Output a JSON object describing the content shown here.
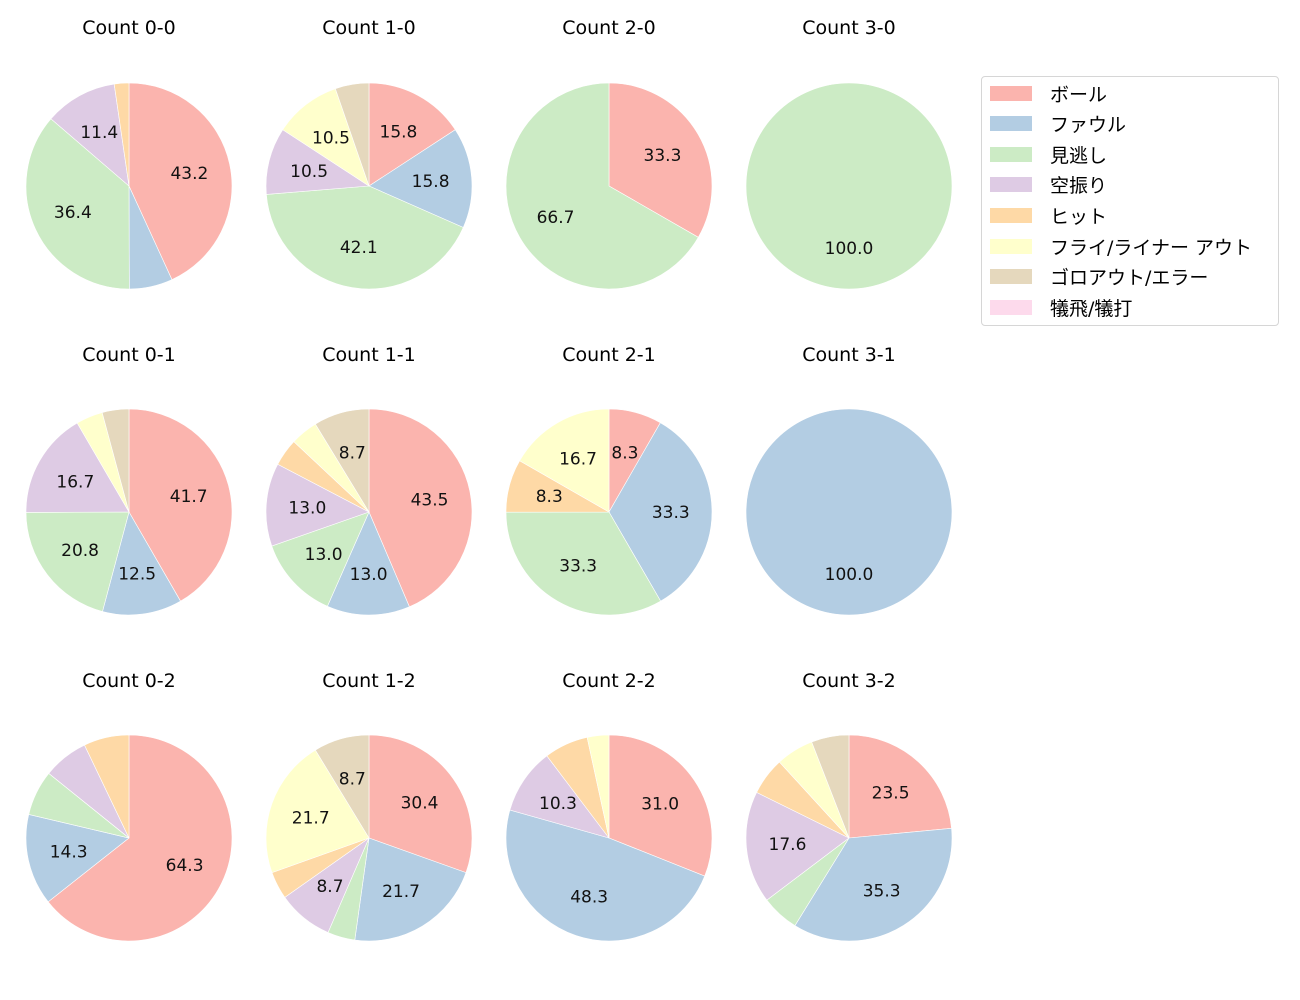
{
  "legend": {
    "items": [
      {
        "label": "ボール",
        "color": "#fbb4ae"
      },
      {
        "label": "ファウル",
        "color": "#b3cde3"
      },
      {
        "label": "見逃し",
        "color": "#ccebc5"
      },
      {
        "label": "空振り",
        "color": "#decbe4"
      },
      {
        "label": "ヒット",
        "color": "#fed9a6"
      },
      {
        "label": "フライ/ライナー アウト",
        "color": "#ffffcc"
      },
      {
        "label": "ゴロアウト/エラー",
        "color": "#e5d8bd"
      },
      {
        "label": "犠飛/犠打",
        "color": "#fddaec"
      }
    ]
  },
  "chart_data": [
    {
      "type": "pie",
      "title": "Count 0-0",
      "labels": [
        "ボール",
        "ファウル",
        "見逃し",
        "空振り",
        "ヒット"
      ],
      "values": [
        43.2,
        6.8,
        36.4,
        11.4,
        2.3
      ],
      "shown_labels": [
        "43.2",
        "",
        "36.4",
        "11.4",
        ""
      ]
    },
    {
      "type": "pie",
      "title": "Count 1-0",
      "labels": [
        "ボール",
        "ファウル",
        "見逃し",
        "空振り",
        "フライ/ライナー アウト",
        "ゴロアウト/エラー"
      ],
      "values": [
        15.8,
        15.8,
        42.1,
        10.5,
        10.5,
        5.3
      ],
      "shown_labels": [
        "15.8",
        "15.8",
        "42.1",
        "10.5",
        "10.5",
        ""
      ]
    },
    {
      "type": "pie",
      "title": "Count 2-0",
      "labels": [
        "ボール",
        "見逃し"
      ],
      "values": [
        33.3,
        66.7
      ],
      "shown_labels": [
        "33.3",
        "66.7"
      ]
    },
    {
      "type": "pie",
      "title": "Count 3-0",
      "labels": [
        "見逃し"
      ],
      "values": [
        100.0
      ],
      "shown_labels": [
        "100.0"
      ]
    },
    {
      "type": "pie",
      "title": "Count 0-1",
      "labels": [
        "ボール",
        "ファウル",
        "見逃し",
        "空振り",
        "フライ/ライナー アウト",
        "ゴロアウト/エラー"
      ],
      "values": [
        41.7,
        12.5,
        20.8,
        16.7,
        4.2,
        4.2
      ],
      "shown_labels": [
        "41.7",
        "12.5",
        "20.8",
        "16.7",
        "",
        ""
      ]
    },
    {
      "type": "pie",
      "title": "Count 1-1",
      "labels": [
        "ボール",
        "ファウル",
        "見逃し",
        "空振り",
        "ヒット",
        "フライ/ライナー アウト",
        "ゴロアウト/エラー"
      ],
      "values": [
        43.5,
        13.0,
        13.0,
        13.0,
        4.3,
        4.3,
        8.7
      ],
      "shown_labels": [
        "43.5",
        "13.0",
        "13.0",
        "13.0",
        "",
        "",
        "8.7"
      ]
    },
    {
      "type": "pie",
      "title": "Count 2-1",
      "labels": [
        "ボール",
        "ファウル",
        "見逃し",
        "ヒット",
        "フライ/ライナー アウト"
      ],
      "values": [
        8.3,
        33.3,
        33.3,
        8.3,
        16.7
      ],
      "shown_labels": [
        "8.3",
        "33.3",
        "33.3",
        "8.3",
        "16.7"
      ]
    },
    {
      "type": "pie",
      "title": "Count 3-1",
      "labels": [
        "ファウル"
      ],
      "values": [
        100.0
      ],
      "shown_labels": [
        "100.0"
      ]
    },
    {
      "type": "pie",
      "title": "Count 0-2",
      "labels": [
        "ボール",
        "ファウル",
        "見逃し",
        "空振り",
        "ヒット"
      ],
      "values": [
        64.3,
        14.3,
        7.1,
        7.1,
        7.1
      ],
      "shown_labels": [
        "64.3",
        "14.3",
        "",
        "",
        ""
      ]
    },
    {
      "type": "pie",
      "title": "Count 1-2",
      "labels": [
        "ボール",
        "ファウル",
        "見逃し",
        "空振り",
        "ヒット",
        "フライ/ライナー アウト",
        "ゴロアウト/エラー"
      ],
      "values": [
        30.4,
        21.7,
        4.3,
        8.7,
        4.3,
        21.7,
        8.7
      ],
      "shown_labels": [
        "30.4",
        "21.7",
        "",
        "8.7",
        "",
        "21.7",
        "8.7"
      ]
    },
    {
      "type": "pie",
      "title": "Count 2-2",
      "labels": [
        "ボール",
        "ファウル",
        "空振り",
        "ヒット",
        "フライ/ライナー アウト"
      ],
      "values": [
        31.0,
        48.3,
        10.3,
        6.9,
        3.4
      ],
      "shown_labels": [
        "31.0",
        "48.3",
        "10.3",
        "",
        ""
      ]
    },
    {
      "type": "pie",
      "title": "Count 3-2",
      "labels": [
        "ボール",
        "ファウル",
        "見逃し",
        "空振り",
        "ヒット",
        "フライ/ライナー アウト",
        "ゴロアウト/エラー"
      ],
      "values": [
        23.5,
        35.3,
        5.9,
        17.6,
        5.9,
        5.9,
        5.9
      ],
      "shown_labels": [
        "23.5",
        "35.3",
        "",
        "17.6",
        "",
        "",
        ""
      ]
    }
  ]
}
